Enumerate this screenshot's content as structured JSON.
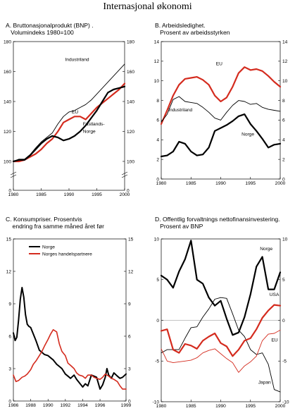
{
  "title": "Internasjonal økonomi",
  "colors": {
    "black": "#000000",
    "red": "#d42b1e",
    "grey": "#888888"
  },
  "chart_data": [
    {
      "id": "A",
      "type": "line",
      "title_lines": [
        "A. Bruttonasjonalprodukt (BNP) .",
        "   Volumindeks 1980=100"
      ],
      "xlim": [
        1980,
        2000
      ],
      "ylim": [
        100,
        180
      ],
      "xticks": [
        1980,
        1985,
        1990,
        1995,
        2000
      ],
      "yticks": [
        100,
        120,
        140,
        160,
        180
      ],
      "axis_break": true,
      "y_zero_label": "0",
      "series": [
        {
          "name": "Industriland",
          "color": "#000000",
          "width": 0.9,
          "x": [
            1980,
            1981,
            1982,
            1983,
            1984,
            1985,
            1986,
            1987,
            1988,
            1989,
            1990,
            1991,
            1992,
            1993,
            1994,
            1995,
            1996,
            1997,
            1998,
            1999,
            2000
          ],
          "y": [
            100,
            101.5,
            101.5,
            104.5,
            109,
            113,
            116,
            119,
            125,
            130,
            133,
            134,
            136,
            138,
            141,
            145,
            149,
            153,
            157,
            161,
            165
          ]
        },
        {
          "name": "EU",
          "color": "#d42b1e",
          "width": 2.2,
          "x": [
            1980,
            1981,
            1982,
            1983,
            1984,
            1985,
            1986,
            1987,
            1988,
            1989,
            1990,
            1991,
            1992,
            1993,
            1994,
            1995,
            1996,
            1997,
            1998,
            1999,
            2000
          ],
          "y": [
            100,
            100,
            101,
            103,
            105,
            108,
            112,
            115,
            120,
            126,
            128,
            130,
            130,
            128,
            132,
            136,
            139,
            142,
            145,
            148,
            152
          ]
        },
        {
          "name": "Fastlands-Norge",
          "color": "#000000",
          "width": 2.2,
          "x": [
            1980,
            1981,
            1982,
            1983,
            1984,
            1985,
            1986,
            1987,
            1988,
            1989,
            1990,
            1991,
            1992,
            1993,
            1994,
            1995,
            1996,
            1997,
            1998,
            1999,
            2000
          ],
          "y": [
            100,
            101,
            101,
            104,
            108,
            112,
            115,
            117,
            116,
            114,
            115,
            117,
            120,
            124,
            129,
            134,
            140,
            146,
            148,
            149,
            150
          ]
        }
      ],
      "annotations": [
        {
          "text": "Industriland",
          "x": 1989.3,
          "y": 167
        },
        {
          "text": "EU",
          "x": 1990.5,
          "y": 132
        },
        {
          "text": "Fastlands-",
          "x": 1992.5,
          "y": 124
        },
        {
          "text": "Norge",
          "x": 1992.5,
          "y": 119
        }
      ]
    },
    {
      "id": "B",
      "type": "line",
      "title_lines": [
        "B. Arbeidsledighet.",
        "   Prosent av arbeidsstyrken"
      ],
      "xlim": [
        1980,
        2000
      ],
      "ylim": [
        0,
        14
      ],
      "xticks": [
        1980,
        1985,
        1990,
        1995,
        2000
      ],
      "yticks": [
        0,
        2,
        4,
        6,
        8,
        10,
        12,
        14
      ],
      "series": [
        {
          "name": "EU",
          "color": "#d42b1e",
          "width": 2.2,
          "x": [
            1980,
            1981,
            1982,
            1983,
            1984,
            1985,
            1986,
            1987,
            1988,
            1989,
            1990,
            1991,
            1992,
            1993,
            1994,
            1995,
            1996,
            1997,
            1998,
            1999,
            2000
          ],
          "y": [
            5.6,
            7.0,
            8.5,
            9.6,
            10.2,
            10.3,
            10.4,
            10.1,
            9.6,
            8.5,
            7.9,
            8.3,
            9.4,
            10.8,
            11.4,
            11.1,
            11.2,
            11.0,
            10.5,
            9.9,
            9.4
          ]
        },
        {
          "name": "Industriland",
          "color": "#000000",
          "width": 0.9,
          "x": [
            1980,
            1981,
            1982,
            1983,
            1984,
            1985,
            1986,
            1987,
            1988,
            1989,
            1990,
            1991,
            1992,
            1993,
            1994,
            1995,
            1996,
            1997,
            1998,
            1999,
            2000
          ],
          "y": [
            5.8,
            6.6,
            8.1,
            8.4,
            7.9,
            7.8,
            7.7,
            7.3,
            6.8,
            6.2,
            6.0,
            6.8,
            7.5,
            8.0,
            7.9,
            7.6,
            7.7,
            7.3,
            7.1,
            7.0,
            6.9
          ]
        },
        {
          "name": "Norge",
          "color": "#000000",
          "width": 2.2,
          "x": [
            1980,
            1981,
            1982,
            1983,
            1984,
            1985,
            1986,
            1987,
            1988,
            1989,
            1990,
            1991,
            1992,
            1993,
            1994,
            1995,
            1996,
            1997,
            1998,
            1999,
            2000
          ],
          "y": [
            2.3,
            2.4,
            2.8,
            3.8,
            3.6,
            2.8,
            2.4,
            2.5,
            3.2,
            4.9,
            5.2,
            5.5,
            5.9,
            6.4,
            6.6,
            5.6,
            4.9,
            4.1,
            3.2,
            3.5,
            3.6
          ]
        }
      ],
      "annotations": [
        {
          "text": "EU",
          "x": 1989.2,
          "y": 11.6
        },
        {
          "text": "Industriland",
          "x": 1981.2,
          "y": 6.9
        },
        {
          "text": "Norge",
          "x": 1993.5,
          "y": 4.4
        }
      ]
    },
    {
      "id": "C",
      "type": "line",
      "title_lines": [
        "C. Konsumpriser. Prosentvis",
        "    endring fra samme måned året før"
      ],
      "xlim": [
        1986,
        1999
      ],
      "ylim": [
        0,
        15
      ],
      "xticks": [
        1986,
        1988,
        1990,
        1992,
        1994,
        1996,
        1999
      ],
      "xtick_labels": [
        "1986",
        "1988",
        "1990",
        "1992",
        "1994",
        "1996",
        "1999"
      ],
      "yticks": [
        0,
        3,
        6,
        9,
        12,
        15
      ],
      "series": [
        {
          "name": "Norge",
          "color": "#000000",
          "width": 2.0,
          "x": [
            1986,
            1986.2,
            1986.4,
            1986.6,
            1986.8,
            1987,
            1987.2,
            1987.4,
            1987.6,
            1987.8,
            1988,
            1988.3,
            1988.6,
            1989,
            1989.3,
            1989.6,
            1990,
            1990.3,
            1990.6,
            1991,
            1991.3,
            1991.6,
            1992,
            1992.3,
            1992.6,
            1993,
            1993.3,
            1993.6,
            1994,
            1994.3,
            1994.6,
            1995,
            1995.3,
            1995.6,
            1996,
            1996.3,
            1996.6,
            1996.8,
            1997,
            1997.3,
            1997.6,
            1998,
            1998.3,
            1998.6,
            1999
          ],
          "y": [
            6.3,
            5.6,
            5.9,
            7.5,
            9.4,
            10.5,
            9.6,
            8.0,
            7.1,
            6.9,
            6.8,
            6.2,
            5.6,
            4.7,
            4.5,
            4.3,
            4.2,
            4.0,
            3.8,
            3.4,
            3.2,
            3.0,
            2.5,
            2.3,
            2.1,
            2.4,
            2.0,
            1.7,
            1.3,
            1.6,
            1.4,
            2.4,
            2.3,
            2.2,
            1.1,
            1.5,
            2.2,
            3.0,
            2.4,
            2.1,
            2.6,
            2.3,
            2.1,
            2.2,
            2.5
          ]
        },
        {
          "name": "Norges handelspartnere",
          "color": "#d42b1e",
          "width": 1.6,
          "x": [
            1986,
            1986.3,
            1986.6,
            1987,
            1987.3,
            1987.6,
            1988,
            1988.3,
            1988.6,
            1989,
            1989.3,
            1989.6,
            1990,
            1990.3,
            1990.6,
            1991,
            1991.3,
            1991.6,
            1992,
            1992.3,
            1992.6,
            1993,
            1993.3,
            1993.6,
            1994,
            1994.3,
            1994.6,
            1995,
            1995.3,
            1995.6,
            1996,
            1996.3,
            1996.6,
            1997,
            1997.3,
            1997.6,
            1998,
            1998.3,
            1998.6,
            1999
          ],
          "y": [
            2.4,
            1.8,
            1.9,
            2.2,
            2.3,
            2.5,
            2.9,
            3.4,
            3.7,
            4.2,
            4.6,
            5.1,
            5.7,
            6.2,
            6.6,
            6.4,
            5.3,
            4.6,
            4.2,
            3.5,
            3.3,
            3.0,
            2.6,
            2.4,
            2.3,
            2.1,
            2.4,
            2.4,
            2.2,
            2.1,
            2.0,
            2.2,
            2.5,
            2.3,
            2.1,
            2.0,
            1.8,
            1.4,
            1.1,
            1.1
          ]
        }
      ],
      "legend": [
        {
          "text": "Norge",
          "color": "#000000"
        },
        {
          "text": "Norges handelspartnere",
          "color": "#d42b1e"
        }
      ]
    },
    {
      "id": "D",
      "type": "line",
      "title_lines": [
        "D. Offentlig forvaltnings nettofinansinvestering.",
        "   Prosent av BNP"
      ],
      "xlim": [
        1980,
        2000
      ],
      "ylim": [
        -10,
        10
      ],
      "xticks": [
        1980,
        1985,
        1990,
        1995,
        2000
      ],
      "yticks": [
        -10,
        -5,
        0,
        5,
        10
      ],
      "zero_line": true,
      "series": [
        {
          "name": "Norge",
          "color": "#000000",
          "width": 2.2,
          "x": [
            1980,
            1981,
            1982,
            1983,
            1984,
            1985,
            1986,
            1987,
            1988,
            1989,
            1990,
            1991,
            1992,
            1993,
            1994,
            1995,
            1996,
            1997,
            1998,
            1999,
            2000
          ],
          "y": [
            5.5,
            5.0,
            4.0,
            6.0,
            7.5,
            9.8,
            5.0,
            4.5,
            2.8,
            1.8,
            2.4,
            0.2,
            -1.8,
            -1.5,
            0.4,
            3.2,
            6.6,
            7.8,
            3.8,
            3.8,
            5.9
          ]
        },
        {
          "name": "Japan",
          "color": "#000000",
          "width": 0.9,
          "x": [
            1980,
            1981,
            1982,
            1983,
            1984,
            1985,
            1986,
            1987,
            1988,
            1989,
            1990,
            1991,
            1992,
            1993,
            1994,
            1995,
            1996,
            1997,
            1998,
            1999,
            2000
          ],
          "y": [
            -4.0,
            -3.6,
            -3.6,
            -3.6,
            -2.2,
            -0.9,
            -0.8,
            0.4,
            1.4,
            2.6,
            2.8,
            2.7,
            0.8,
            -1.2,
            -2.0,
            -3.6,
            -4.2,
            -4.0,
            -5.4,
            -8.5,
            -8.8
          ]
        },
        {
          "name": "USA",
          "color": "#d42b1e",
          "width": 2.2,
          "x": [
            1980,
            1981,
            1982,
            1983,
            1984,
            1985,
            1986,
            1987,
            1988,
            1989,
            1990,
            1991,
            1992,
            1993,
            1994,
            1995,
            1996,
            1997,
            1998,
            1999,
            2000
          ],
          "y": [
            -1.3,
            -1.1,
            -3.6,
            -4.0,
            -2.9,
            -3.1,
            -3.5,
            -2.5,
            -2.0,
            -1.6,
            -2.8,
            -3.2,
            -4.4,
            -3.6,
            -2.5,
            -2.2,
            -1.1,
            0.3,
            1.2,
            1.9,
            1.8
          ]
        },
        {
          "name": "EU",
          "color": "#d42b1e",
          "width": 0.9,
          "x": [
            1980,
            1981,
            1982,
            1983,
            1984,
            1985,
            1986,
            1987,
            1988,
            1989,
            1990,
            1991,
            1992,
            1993,
            1994,
            1995,
            1996,
            1997,
            1998,
            1999,
            2000
          ],
          "y": [
            -3.5,
            -5.0,
            -5.2,
            -5.1,
            -5.0,
            -4.9,
            -4.6,
            -4.0,
            -3.7,
            -3.5,
            -4.1,
            -4.7,
            -5.2,
            -6.4,
            -5.6,
            -5.1,
            -4.4,
            -2.5,
            -1.7,
            -1.6,
            -1.2
          ]
        }
      ],
      "annotations": [
        {
          "text": "Norge",
          "x": 1996.6,
          "y": 8.6
        },
        {
          "text": "USA",
          "x": 1998.2,
          "y": 3.0
        },
        {
          "text": "EU",
          "x": 1998.5,
          "y": -2.6
        },
        {
          "text": "Japan",
          "x": 1996.3,
          "y": -7.8
        }
      ]
    }
  ]
}
